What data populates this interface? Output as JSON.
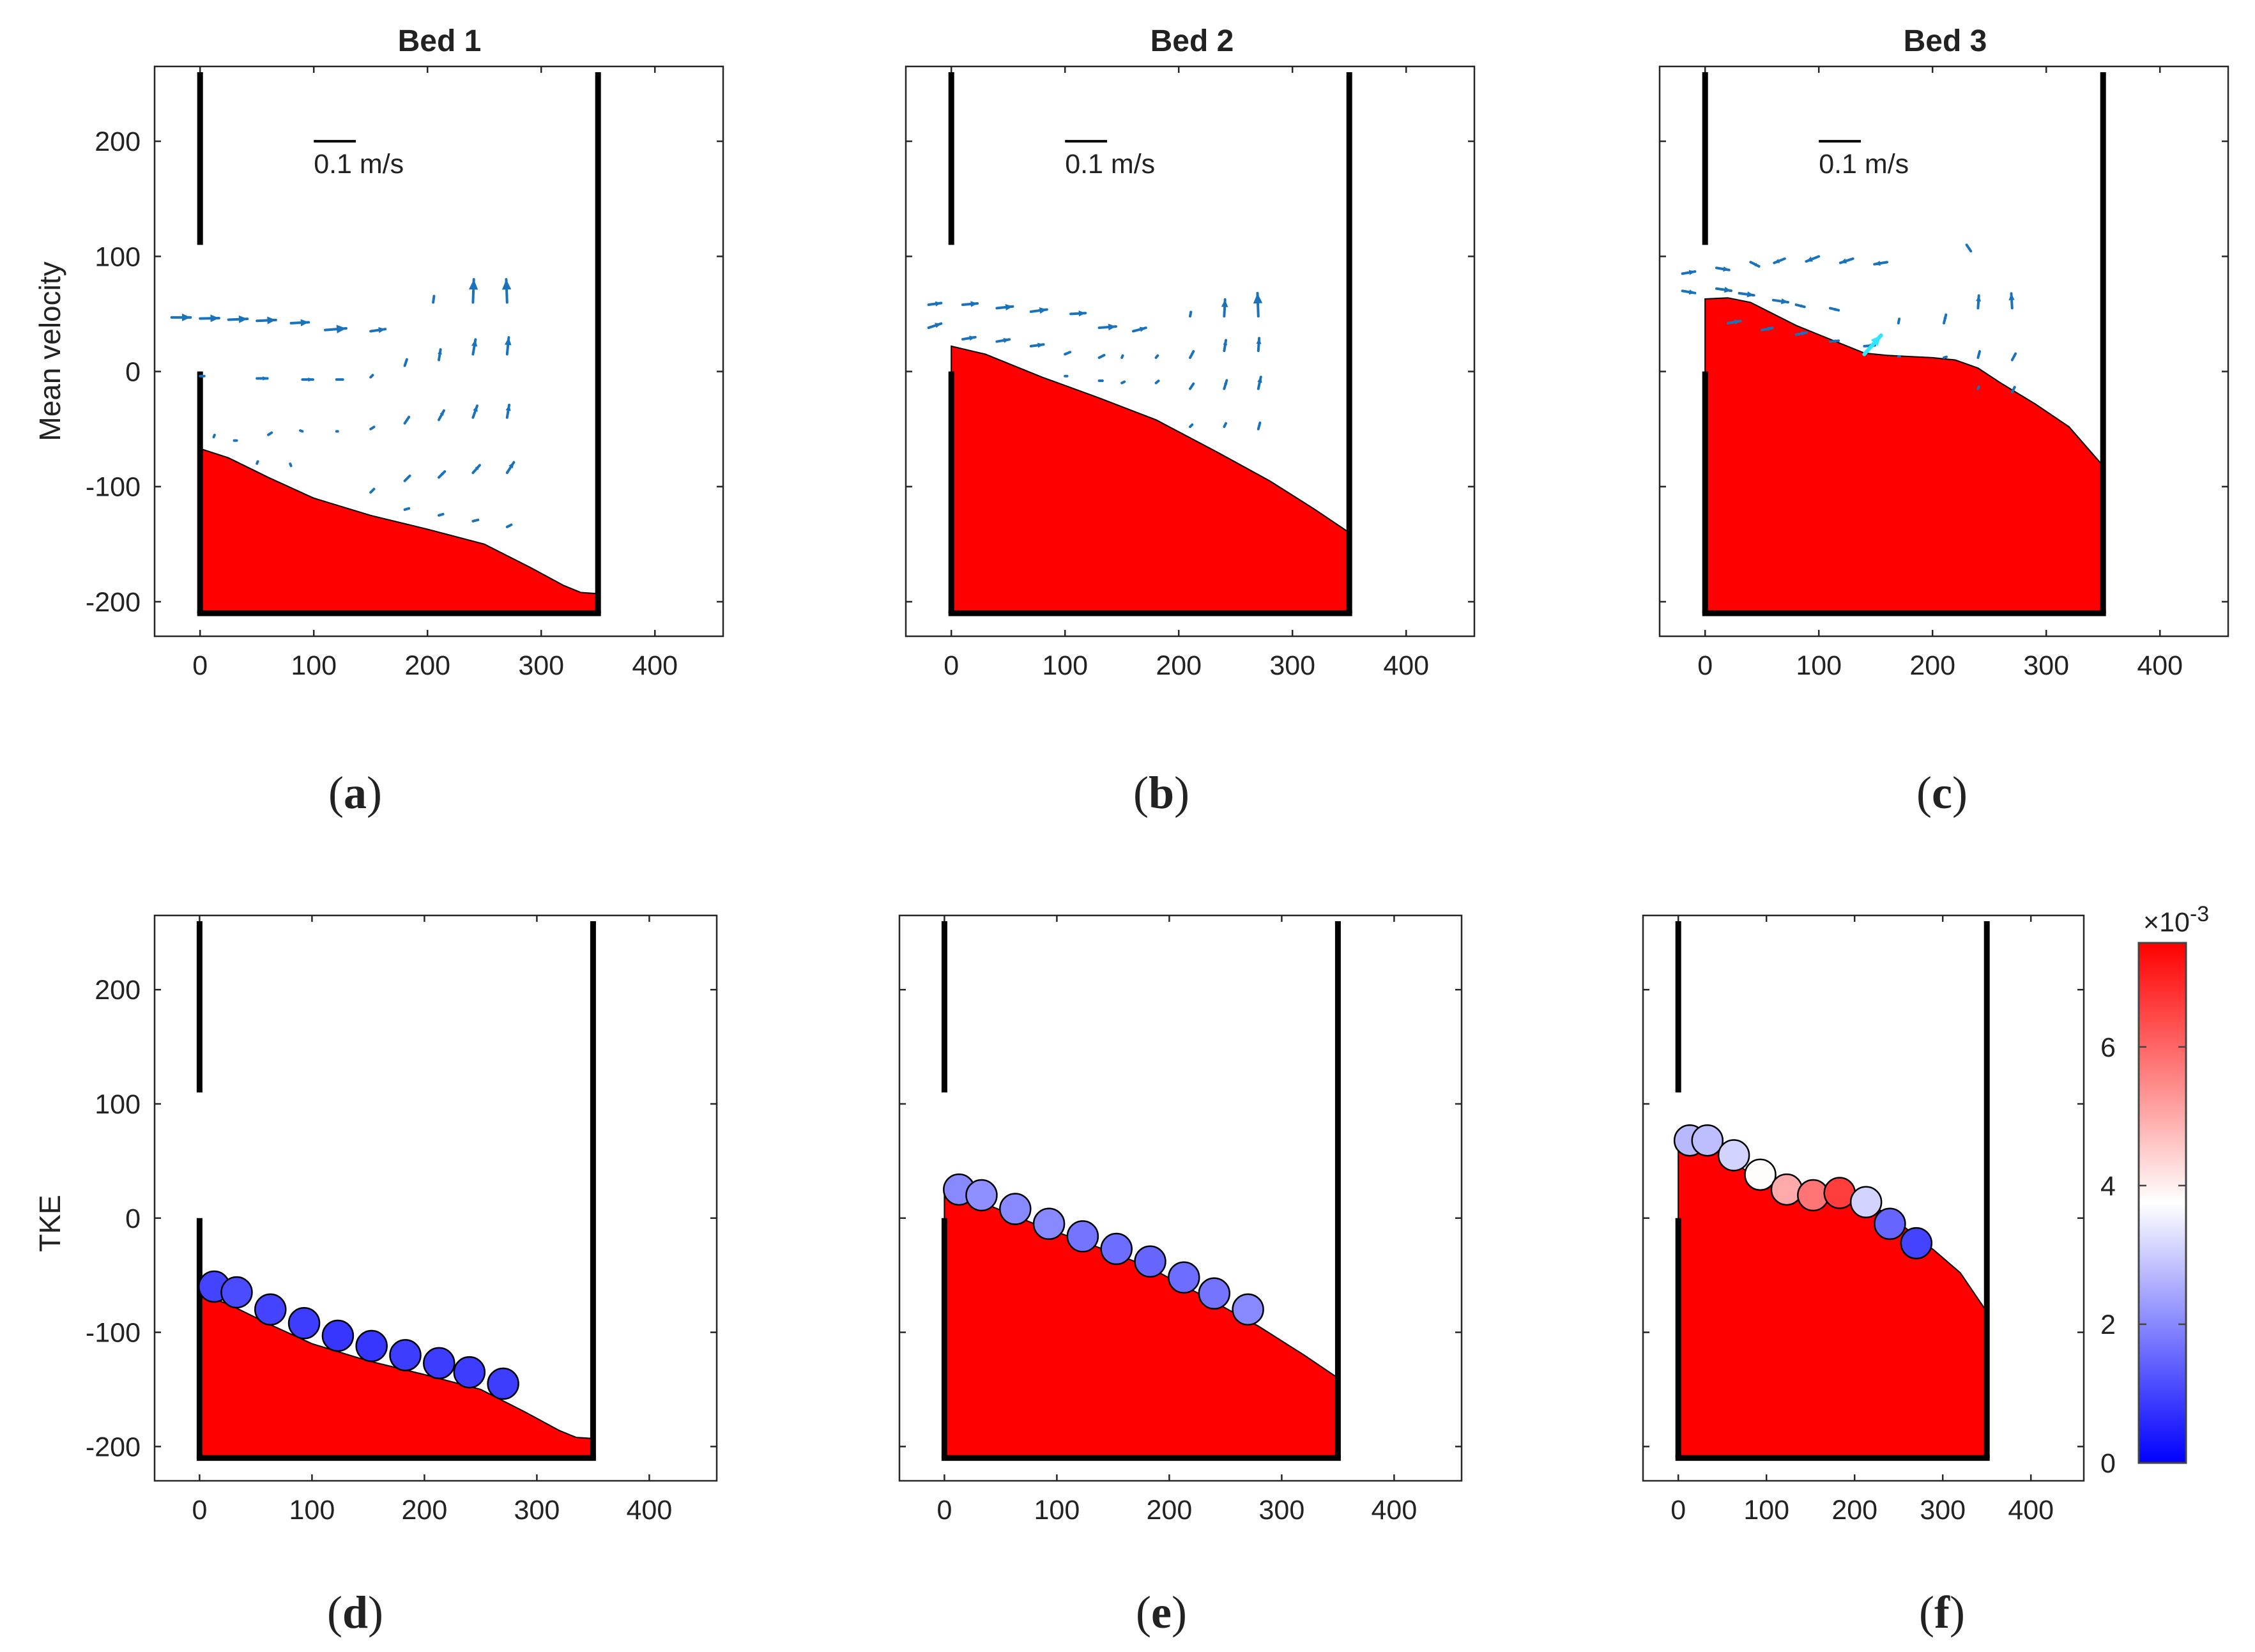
{
  "chart_data": [
    {
      "panel": "a",
      "caption_label": "a",
      "type": "quiver",
      "title": "Bed 1",
      "ylabel": "Mean velocity",
      "xlabel": "",
      "xlim": [
        -40,
        460
      ],
      "ylim": [
        -230,
        265
      ],
      "xticks": [
        0,
        100,
        200,
        300,
        400
      ],
      "yticks": [
        -200,
        -100,
        0,
        100,
        200
      ],
      "scale_label": "0.1 m/s",
      "bed": [
        [
          0,
          -67
        ],
        [
          25,
          -75
        ],
        [
          60,
          -92
        ],
        [
          100,
          -110
        ],
        [
          150,
          -125
        ],
        [
          200,
          -137
        ],
        [
          250,
          -150
        ],
        [
          290,
          -170
        ],
        [
          320,
          -186
        ],
        [
          335,
          -192
        ],
        [
          350,
          -193
        ]
      ],
      "arrows": [
        {
          "x": -25,
          "y": 47,
          "u": 0.45,
          "v": 0.0
        },
        {
          "x": 0,
          "y": 46,
          "u": 0.45,
          "v": 0.01
        },
        {
          "x": 25,
          "y": 45,
          "u": 0.45,
          "v": 0.02
        },
        {
          "x": 50,
          "y": 44,
          "u": 0.45,
          "v": 0.02
        },
        {
          "x": 80,
          "y": 42,
          "u": 0.42,
          "v": 0.02
        },
        {
          "x": 110,
          "y": 36,
          "u": 0.5,
          "v": 0.04
        },
        {
          "x": 150,
          "y": 35,
          "u": 0.35,
          "v": 0.05
        },
        {
          "x": 205,
          "y": 60,
          "u": 0.02,
          "v": 0.15
        },
        {
          "x": 240,
          "y": 60,
          "u": 0.02,
          "v": 0.55
        },
        {
          "x": 270,
          "y": 60,
          "u": -0.02,
          "v": 0.55
        },
        {
          "x": 0,
          "y": -4,
          "u": 0.1,
          "v": 0.0
        },
        {
          "x": 50,
          "y": -6,
          "u": 0.25,
          "v": 0.0
        },
        {
          "x": 90,
          "y": -7,
          "u": 0.25,
          "v": 0.0
        },
        {
          "x": 120,
          "y": -7,
          "u": 0.15,
          "v": 0.0
        },
        {
          "x": 150,
          "y": -5,
          "u": 0.05,
          "v": 0.05
        },
        {
          "x": 180,
          "y": 5,
          "u": 0.05,
          "v": 0.15
        },
        {
          "x": 210,
          "y": 10,
          "u": 0.04,
          "v": 0.25
        },
        {
          "x": 240,
          "y": 15,
          "u": 0.06,
          "v": 0.35
        },
        {
          "x": 270,
          "y": 15,
          "u": 0.04,
          "v": 0.4
        },
        {
          "x": 12,
          "y": -57,
          "u": 0.02,
          "v": 0.05
        },
        {
          "x": 30,
          "y": -60,
          "u": 0.06,
          "v": 0.0
        },
        {
          "x": 60,
          "y": -55,
          "u": 0.08,
          "v": 0.05
        },
        {
          "x": 90,
          "y": -52,
          "u": -0.05,
          "v": 0.02
        },
        {
          "x": 120,
          "y": -52,
          "u": 0.03,
          "v": 0.0
        },
        {
          "x": 150,
          "y": -50,
          "u": 0.08,
          "v": 0.05
        },
        {
          "x": 180,
          "y": -45,
          "u": 0.1,
          "v": 0.15
        },
        {
          "x": 210,
          "y": -42,
          "u": 0.12,
          "v": 0.22
        },
        {
          "x": 240,
          "y": -40,
          "u": 0.1,
          "v": 0.28
        },
        {
          "x": 270,
          "y": -40,
          "u": 0.05,
          "v": 0.3
        },
        {
          "x": 50,
          "y": -80,
          "u": 0.02,
          "v": 0.05
        },
        {
          "x": 80,
          "y": -82,
          "u": -0.02,
          "v": 0.05
        },
        {
          "x": 150,
          "y": -105,
          "u": 0.08,
          "v": 0.08
        },
        {
          "x": 180,
          "y": -95,
          "u": 0.12,
          "v": 0.12
        },
        {
          "x": 210,
          "y": -92,
          "u": 0.14,
          "v": 0.14
        },
        {
          "x": 240,
          "y": -88,
          "u": 0.16,
          "v": 0.18
        },
        {
          "x": 270,
          "y": -88,
          "u": 0.16,
          "v": 0.25
        },
        {
          "x": 180,
          "y": -120,
          "u": 0.1,
          "v": 0.03
        },
        {
          "x": 210,
          "y": -125,
          "u": 0.1,
          "v": 0.03
        },
        {
          "x": 240,
          "y": -130,
          "u": 0.12,
          "v": 0.03
        },
        {
          "x": 270,
          "y": -135,
          "u": 0.1,
          "v": 0.05
        }
      ]
    },
    {
      "panel": "b",
      "caption_label": "b",
      "type": "quiver",
      "title": "Bed 2",
      "ylabel": "",
      "xlabel": "",
      "xlim": [
        -40,
        460
      ],
      "ylim": [
        -230,
        265
      ],
      "xticks": [
        0,
        100,
        200,
        300,
        400
      ],
      "yticks": [
        -200,
        -100,
        0,
        100,
        200
      ],
      "scale_label": "0.1 m/s",
      "bed": [
        [
          0,
          22
        ],
        [
          30,
          15
        ],
        [
          80,
          -5
        ],
        [
          130,
          -23
        ],
        [
          180,
          -42
        ],
        [
          230,
          -68
        ],
        [
          280,
          -95
        ],
        [
          320,
          -120
        ],
        [
          350,
          -140
        ]
      ],
      "arrows": [
        {
          "x": -20,
          "y": 58,
          "u": 0.3,
          "v": 0.04
        },
        {
          "x": 10,
          "y": 58,
          "u": 0.35,
          "v": 0.03
        },
        {
          "x": 40,
          "y": 55,
          "u": 0.38,
          "v": 0.04
        },
        {
          "x": 70,
          "y": 52,
          "u": 0.38,
          "v": 0.05
        },
        {
          "x": 105,
          "y": 50,
          "u": 0.35,
          "v": 0.02
        },
        {
          "x": 130,
          "y": 38,
          "u": 0.4,
          "v": 0.03
        },
        {
          "x": 160,
          "y": 35,
          "u": 0.3,
          "v": 0.08
        },
        {
          "x": 210,
          "y": 48,
          "u": 0.02,
          "v": 0.1
        },
        {
          "x": 240,
          "y": 48,
          "u": 0.02,
          "v": 0.4
        },
        {
          "x": 270,
          "y": 48,
          "u": -0.02,
          "v": 0.55
        },
        {
          "x": -20,
          "y": 38,
          "u": 0.3,
          "v": 0.1
        },
        {
          "x": 10,
          "y": 28,
          "u": 0.3,
          "v": 0.05
        },
        {
          "x": 40,
          "y": 26,
          "u": 0.3,
          "v": 0.05
        },
        {
          "x": 70,
          "y": 22,
          "u": 0.3,
          "v": 0.04
        },
        {
          "x": 100,
          "y": 15,
          "u": 0.12,
          "v": 0.05
        },
        {
          "x": 130,
          "y": 12,
          "u": 0.12,
          "v": 0.06
        },
        {
          "x": 150,
          "y": 12,
          "u": 0.02,
          "v": 0.05
        },
        {
          "x": 180,
          "y": 12,
          "u": 0.04,
          "v": 0.05
        },
        {
          "x": 210,
          "y": 12,
          "u": 0.08,
          "v": 0.15
        },
        {
          "x": 240,
          "y": 18,
          "u": 0.04,
          "v": 0.25
        },
        {
          "x": 270,
          "y": 18,
          "u": 0.02,
          "v": 0.3
        },
        {
          "x": 100,
          "y": -4,
          "u": 0.05,
          "v": 0.0
        },
        {
          "x": 130,
          "y": -8,
          "u": 0.08,
          "v": 0.0
        },
        {
          "x": 150,
          "y": -10,
          "u": 0.06,
          "v": 0.03
        },
        {
          "x": 180,
          "y": -10,
          "u": 0.06,
          "v": 0.05
        },
        {
          "x": 210,
          "y": -15,
          "u": 0.08,
          "v": 0.12
        },
        {
          "x": 240,
          "y": -15,
          "u": 0.06,
          "v": 0.2
        },
        {
          "x": 270,
          "y": -15,
          "u": 0.06,
          "v": 0.28
        },
        {
          "x": 210,
          "y": -48,
          "u": 0.05,
          "v": 0.05
        },
        {
          "x": 240,
          "y": -48,
          "u": 0.04,
          "v": 0.08
        },
        {
          "x": 270,
          "y": -50,
          "u": 0.04,
          "v": 0.15
        }
      ]
    },
    {
      "panel": "c",
      "caption_label": "c",
      "type": "quiver",
      "title": "Bed 3",
      "ylabel": "",
      "xlabel": "",
      "xlim": [
        -40,
        460
      ],
      "ylim": [
        -230,
        265
      ],
      "xticks": [
        0,
        100,
        200,
        300,
        400
      ],
      "yticks": [
        -200,
        -100,
        0,
        100,
        200
      ],
      "scale_label": "0.1 m/s",
      "bed": [
        [
          0,
          63
        ],
        [
          20,
          64
        ],
        [
          40,
          60
        ],
        [
          60,
          50
        ],
        [
          80,
          40
        ],
        [
          100,
          32
        ],
        [
          120,
          24
        ],
        [
          140,
          16
        ],
        [
          160,
          14
        ],
        [
          180,
          13
        ],
        [
          200,
          12
        ],
        [
          220,
          10
        ],
        [
          240,
          3
        ],
        [
          260,
          -10
        ],
        [
          290,
          -28
        ],
        [
          320,
          -48
        ],
        [
          350,
          -82
        ]
      ],
      "highlight": {
        "x": 140,
        "y": 15,
        "u": 0.4,
        "v": 0.45
      },
      "arrows": [
        {
          "x": -20,
          "y": 70,
          "u": 0.3,
          "v": -0.05
        },
        {
          "x": 10,
          "y": 72,
          "u": 0.35,
          "v": -0.05
        },
        {
          "x": 30,
          "y": 68,
          "u": 0.35,
          "v": -0.05
        },
        {
          "x": 60,
          "y": 62,
          "u": 0.35,
          "v": -0.05
        },
        {
          "x": 80,
          "y": 58,
          "u": 0.2,
          "v": -0.05
        },
        {
          "x": 110,
          "y": 55,
          "u": 0.2,
          "v": -0.05
        },
        {
          "x": 10,
          "y": 90,
          "u": 0.3,
          "v": -0.05
        },
        {
          "x": 40,
          "y": 95,
          "u": 0.2,
          "v": -0.1
        },
        {
          "x": 70,
          "y": 98,
          "u": -0.25,
          "v": -0.1
        },
        {
          "x": 100,
          "y": 100,
          "u": -0.3,
          "v": -0.12
        },
        {
          "x": 130,
          "y": 98,
          "u": -0.3,
          "v": -0.1
        },
        {
          "x": 160,
          "y": 95,
          "u": -0.3,
          "v": -0.05
        },
        {
          "x": -20,
          "y": 85,
          "u": 0.3,
          "v": 0.05
        },
        {
          "x": 20,
          "y": 42,
          "u": 0.3,
          "v": 0.05
        },
        {
          "x": 50,
          "y": 36,
          "u": 0.25,
          "v": 0.05
        },
        {
          "x": 80,
          "y": 32,
          "u": 0.25,
          "v": 0.05
        },
        {
          "x": 110,
          "y": 26,
          "u": 0.2,
          "v": 0.02
        },
        {
          "x": 140,
          "y": 22,
          "u": 0.25,
          "v": 0.02
        },
        {
          "x": 170,
          "y": 42,
          "u": 0.02,
          "v": 0.1
        },
        {
          "x": 210,
          "y": 42,
          "u": 0.05,
          "v": 0.2
        },
        {
          "x": 240,
          "y": 55,
          "u": 0.02,
          "v": 0.3
        },
        {
          "x": 270,
          "y": 55,
          "u": -0.02,
          "v": 0.35
        },
        {
          "x": 230,
          "y": 110,
          "u": 0.1,
          "v": -0.15
        },
        {
          "x": 170,
          "y": 13,
          "u": 0.03,
          "v": 0.0
        },
        {
          "x": 210,
          "y": 12,
          "u": 0.06,
          "v": 0.02
        },
        {
          "x": 240,
          "y": 12,
          "u": 0.04,
          "v": 0.15
        },
        {
          "x": 270,
          "y": 10,
          "u": 0.08,
          "v": 0.15
        },
        {
          "x": 240,
          "y": -15,
          "u": 0.02,
          "v": 0.05
        },
        {
          "x": 270,
          "y": -18,
          "u": 0.06,
          "v": 0.12
        }
      ]
    },
    {
      "panel": "d",
      "caption_label": "d",
      "type": "scatter",
      "title": "",
      "ylabel": "TKE",
      "xlabel": "",
      "xlim": [
        -40,
        460
      ],
      "ylim": [
        -230,
        265
      ],
      "xticks": [
        0,
        100,
        200,
        300,
        400
      ],
      "yticks": [
        -200,
        -100,
        0,
        100,
        200
      ],
      "bed": [
        [
          0,
          -67
        ],
        [
          25,
          -75
        ],
        [
          60,
          -92
        ],
        [
          100,
          -110
        ],
        [
          150,
          -125
        ],
        [
          200,
          -137
        ],
        [
          250,
          -150
        ],
        [
          290,
          -170
        ],
        [
          320,
          -186
        ],
        [
          335,
          -192
        ],
        [
          350,
          -193
        ]
      ],
      "points": [
        {
          "x": 13,
          "y": -60,
          "tke": 0.001
        },
        {
          "x": 33,
          "y": -65,
          "tke": 0.0011
        },
        {
          "x": 63,
          "y": -80,
          "tke": 0.001
        },
        {
          "x": 93,
          "y": -92,
          "tke": 0.0009
        },
        {
          "x": 123,
          "y": -103,
          "tke": 0.0008
        },
        {
          "x": 153,
          "y": -112,
          "tke": 0.0008
        },
        {
          "x": 183,
          "y": -120,
          "tke": 0.0009
        },
        {
          "x": 213,
          "y": -127,
          "tke": 0.0009
        },
        {
          "x": 240,
          "y": -135,
          "tke": 0.0009
        },
        {
          "x": 270,
          "y": -145,
          "tke": 0.0009
        }
      ]
    },
    {
      "panel": "e",
      "caption_label": "e",
      "type": "scatter",
      "title": "",
      "ylabel": "",
      "xlabel": "",
      "xlim": [
        -40,
        460
      ],
      "ylim": [
        -230,
        265
      ],
      "xticks": [
        0,
        100,
        200,
        300,
        400
      ],
      "yticks": [
        -200,
        -100,
        0,
        100,
        200
      ],
      "bed": [
        [
          0,
          22
        ],
        [
          30,
          15
        ],
        [
          80,
          -5
        ],
        [
          130,
          -23
        ],
        [
          180,
          -42
        ],
        [
          230,
          -68
        ],
        [
          280,
          -95
        ],
        [
          320,
          -120
        ],
        [
          350,
          -140
        ]
      ],
      "points": [
        {
          "x": 13,
          "y": 25,
          "tke": 0.002
        },
        {
          "x": 33,
          "y": 20,
          "tke": 0.0021
        },
        {
          "x": 63,
          "y": 8,
          "tke": 0.002
        },
        {
          "x": 93,
          "y": -5,
          "tke": 0.002
        },
        {
          "x": 123,
          "y": -16,
          "tke": 0.0017
        },
        {
          "x": 153,
          "y": -27,
          "tke": 0.0016
        },
        {
          "x": 183,
          "y": -38,
          "tke": 0.0015
        },
        {
          "x": 213,
          "y": -52,
          "tke": 0.0016
        },
        {
          "x": 240,
          "y": -66,
          "tke": 0.0017
        },
        {
          "x": 270,
          "y": -80,
          "tke": 0.002
        }
      ]
    },
    {
      "panel": "f",
      "caption_label": "f",
      "type": "scatter",
      "title": "",
      "ylabel": "",
      "xlabel": "",
      "xlim": [
        -40,
        460
      ],
      "ylim": [
        -230,
        265
      ],
      "xticks": [
        0,
        100,
        200,
        300,
        400
      ],
      "yticks": [
        -200,
        -100,
        0,
        100,
        200
      ],
      "bed": [
        [
          0,
          63
        ],
        [
          20,
          64
        ],
        [
          40,
          60
        ],
        [
          60,
          50
        ],
        [
          80,
          40
        ],
        [
          100,
          32
        ],
        [
          120,
          24
        ],
        [
          140,
          16
        ],
        [
          160,
          14
        ],
        [
          180,
          13
        ],
        [
          200,
          12
        ],
        [
          220,
          10
        ],
        [
          240,
          3
        ],
        [
          260,
          -10
        ],
        [
          290,
          -28
        ],
        [
          320,
          -48
        ],
        [
          350,
          -82
        ]
      ],
      "points": [
        {
          "x": 13,
          "y": 68,
          "tke": 0.0027
        },
        {
          "x": 33,
          "y": 68,
          "tke": 0.0028
        },
        {
          "x": 63,
          "y": 55,
          "tke": 0.0031
        },
        {
          "x": 93,
          "y": 38,
          "tke": 0.0038
        },
        {
          "x": 123,
          "y": 25,
          "tke": 0.005
        },
        {
          "x": 153,
          "y": 20,
          "tke": 0.0058
        },
        {
          "x": 183,
          "y": 22,
          "tke": 0.0066
        },
        {
          "x": 213,
          "y": 14,
          "tke": 0.0031
        },
        {
          "x": 240,
          "y": -5,
          "tke": 0.0015
        },
        {
          "x": 270,
          "y": -22,
          "tke": 0.001
        }
      ],
      "colorbar": {
        "min": 0,
        "max": 0.0075,
        "ticks": [
          0,
          2,
          4,
          6
        ],
        "exponent_label": "×10",
        "exponent_power": "-3",
        "colors": [
          "#0000ff",
          "#ffffff",
          "#ff0000"
        ]
      }
    }
  ],
  "colors": {
    "bed_fill": "#ff0000",
    "arrow": "#1a72bb",
    "highlight_arrow": "#2ee6ff",
    "wall": "#000000"
  }
}
